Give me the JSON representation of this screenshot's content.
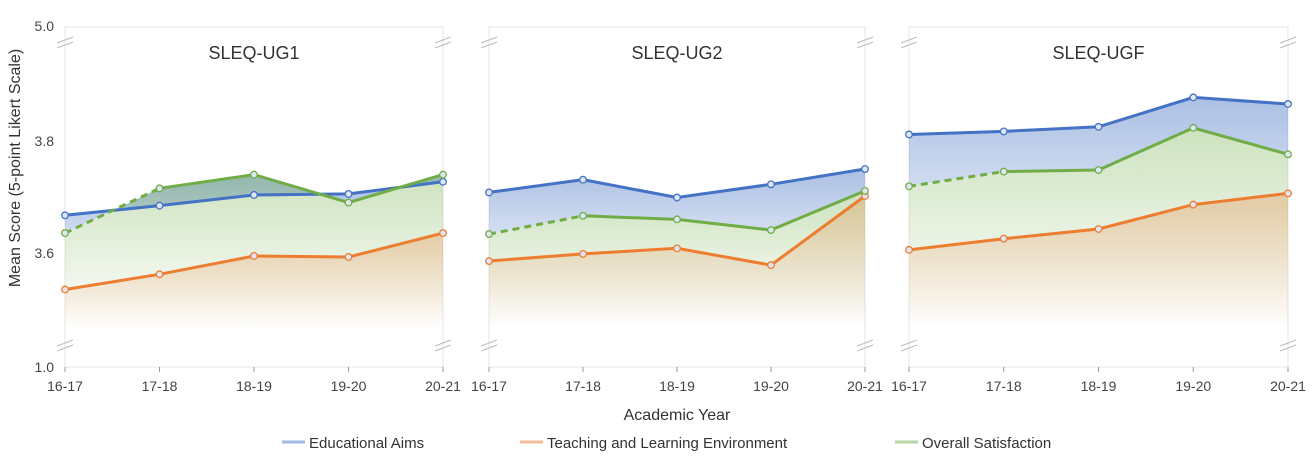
{
  "chart_data": {
    "type": "line",
    "ylabel": "Mean Score (5-point Likert Scale)",
    "xlabel": "Academic Year",
    "categories": [
      "16-17",
      "17-18",
      "18-19",
      "19-20",
      "20-21"
    ],
    "y_ticks": [
      "1.0",
      "3.6",
      "3.8",
      "5.0"
    ],
    "y_scale": "broken axis: 1.0 | 3.6 - 3.8 | 5.0",
    "legend": {
      "position": "bottom",
      "items": [
        "Educational Aims",
        "Teaching and Learning Environment",
        "Overall Satisfaction"
      ]
    },
    "colors": {
      "Educational Aims": "#4472C4",
      "Teaching and Learning Environment": "#ED7D31",
      "Overall Satisfaction": "#70AD47"
    },
    "panels": [
      {
        "title": "SLEQ-UG1",
        "series": [
          {
            "name": "Educational Aims",
            "values": [
              3.665,
              3.684,
              3.705,
              3.707,
              3.731
            ]
          },
          {
            "name": "Teaching and Learning Environment",
            "values": [
              3.519,
              3.549,
              3.585,
              3.583,
              3.63
            ]
          },
          {
            "name": "Overall Satisfaction",
            "values": [
              3.63,
              3.718,
              3.745,
              3.69,
              3.745
            ],
            "dashed_first_segment": true
          }
        ]
      },
      {
        "title": "SLEQ-UG2",
        "series": [
          {
            "name": "Educational Aims",
            "values": [
              3.71,
              3.735,
              3.7,
              3.726,
              3.756
            ]
          },
          {
            "name": "Teaching and Learning Environment",
            "values": [
              3.575,
              3.589,
              3.6,
              3.567,
              3.703
            ]
          },
          {
            "name": "Overall Satisfaction",
            "values": [
              3.628,
              3.664,
              3.657,
              3.636,
              3.713
            ],
            "dashed_first_segment": true
          }
        ]
      },
      {
        "title": "SLEQ-UGF",
        "series": [
          {
            "name": "Educational Aims",
            "values": [
              3.824,
              3.83,
              3.839,
              3.897,
              3.884
            ]
          },
          {
            "name": "Teaching and Learning Environment",
            "values": [
              3.597,
              3.619,
              3.638,
              3.686,
              3.708
            ]
          },
          {
            "name": "Overall Satisfaction",
            "values": [
              3.722,
              3.751,
              3.754,
              3.837,
              3.785
            ],
            "dashed_first_segment": true
          }
        ]
      }
    ]
  }
}
